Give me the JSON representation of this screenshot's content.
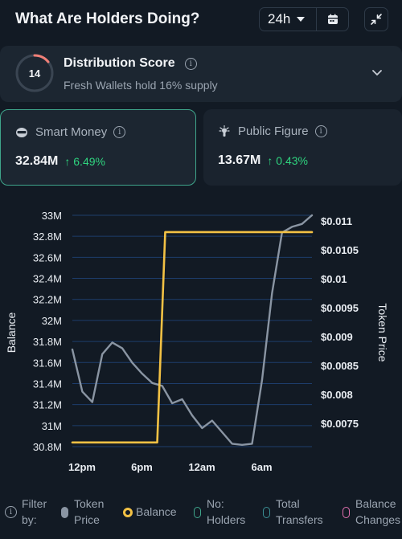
{
  "header": {
    "title": "What Are Holders Doing?",
    "timeframe": "24h"
  },
  "distribution": {
    "score": "14",
    "score_fraction": 0.14,
    "title": "Distribution Score",
    "subtitle": "Fresh Wallets hold 16% supply"
  },
  "stats": {
    "smart_money": {
      "label": "Smart Money",
      "value": "32.84M",
      "change": "6.49%"
    },
    "public_figure": {
      "label": "Public Figure",
      "value": "13.67M",
      "change": "0.43%"
    }
  },
  "chart_data": {
    "type": "line",
    "ylabel_left": "Balance",
    "ylabel_right": "Token Price",
    "y_left_ticks": [
      "33M",
      "32.8M",
      "32.6M",
      "32.4M",
      "32.2M",
      "32M",
      "31.8M",
      "31.6M",
      "31.4M",
      "31.2M",
      "31M",
      "30.8M"
    ],
    "y_right_ticks": [
      "$0.011",
      "$0.0105",
      "$0.01",
      "$0.0095",
      "$0.009",
      "$0.0085",
      "$0.008",
      "$0.0075"
    ],
    "x_ticks": [
      "12pm",
      "6pm",
      "12am",
      "6am"
    ],
    "ylim_left": [
      30.8,
      33.0
    ],
    "ylim_right": [
      0.0071,
      0.0111
    ],
    "x_range": [
      0,
      24
    ],
    "series": [
      {
        "name": "Token Price",
        "color": "#8a95a3",
        "points": [
          [
            0,
            0.00878
          ],
          [
            1,
            0.00805
          ],
          [
            2,
            0.00787
          ],
          [
            3,
            0.0087
          ],
          [
            4,
            0.0089
          ],
          [
            5,
            0.0088
          ],
          [
            6,
            0.00855
          ],
          [
            7,
            0.00836
          ],
          [
            8,
            0.0082
          ],
          [
            9,
            0.00815
          ],
          [
            10,
            0.00785
          ],
          [
            11,
            0.00792
          ],
          [
            12,
            0.00764
          ],
          [
            13,
            0.00742
          ],
          [
            14,
            0.00755
          ],
          [
            15,
            0.00735
          ],
          [
            16,
            0.00715
          ],
          [
            17,
            0.00713
          ],
          [
            18,
            0.00715
          ],
          [
            19,
            0.00825
          ],
          [
            20,
            0.00975
          ],
          [
            21,
            0.0108
          ],
          [
            22,
            0.0109
          ],
          [
            23,
            0.01095
          ],
          [
            24,
            0.0111
          ]
        ]
      },
      {
        "name": "Balance",
        "color": "#f2c144",
        "points": [
          [
            0,
            30.84
          ],
          [
            8.5,
            30.84
          ],
          [
            9.3,
            32.84
          ],
          [
            24,
            32.84
          ]
        ]
      }
    ]
  },
  "filter": {
    "label_line1": "Filter",
    "label_line2": "by:",
    "items": [
      {
        "line1": "Token",
        "line2": "Price",
        "color": "#8a95a3",
        "active": true
      },
      {
        "line1": "Balance",
        "line2": "",
        "color": "#f2c144",
        "active": true
      },
      {
        "line1": "No:",
        "line2": "Holders",
        "color": "#3fa58b",
        "active": false
      },
      {
        "line1": "Total",
        "line2": "Transfers",
        "color": "#3a8e93",
        "active": false
      },
      {
        "line1": "Balance",
        "line2": "Changes",
        "color": "#e06fae",
        "active": false
      }
    ]
  }
}
